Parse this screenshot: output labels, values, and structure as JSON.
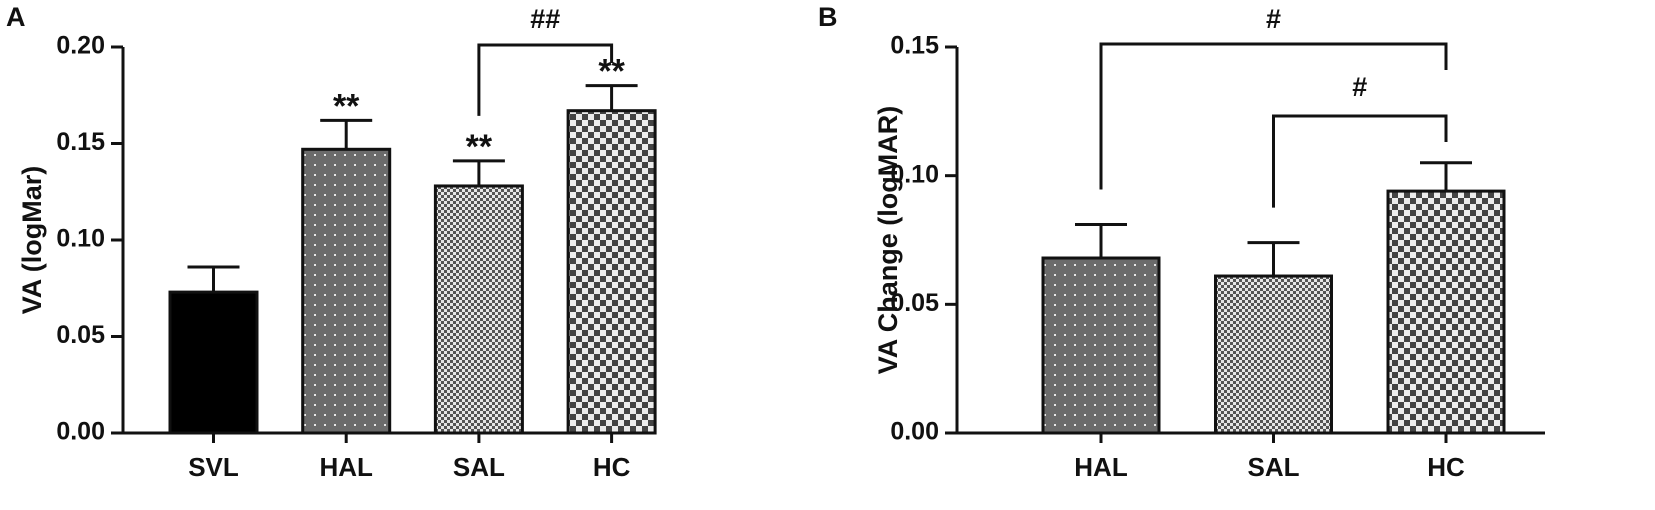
{
  "chart_data": [
    {
      "panel": "A",
      "type": "bar",
      "ylabel": "VA (logMar)",
      "ylim": [
        0,
        0.2
      ],
      "ytick_labels": [
        "0.00",
        "0.05",
        "0.10",
        "0.15",
        "0.20"
      ],
      "yticks": [
        0,
        0.05,
        0.1,
        0.15,
        0.2
      ],
      "categories": [
        "SVL",
        "HAL",
        "SAL",
        "HC"
      ],
      "values": [
        0.073,
        0.147,
        0.128,
        0.167
      ],
      "errors": [
        0.013,
        0.015,
        0.013,
        0.013
      ],
      "patterns": [
        "solid",
        "dots",
        "fine-check",
        "check"
      ],
      "bar_annotations": [
        "",
        "**",
        "**",
        "**"
      ],
      "brackets": [
        {
          "from": "SAL",
          "to": "HC",
          "label": "##"
        }
      ]
    },
    {
      "panel": "B",
      "type": "bar",
      "ylabel": "VA Change  (logMAR)",
      "ylim": [
        0,
        0.15
      ],
      "ytick_labels": [
        "0.00",
        "0.05",
        "0.10",
        "0.15"
      ],
      "yticks": [
        0,
        0.05,
        0.1,
        0.15
      ],
      "categories": [
        "HAL",
        "SAL",
        "HC"
      ],
      "values": [
        0.068,
        0.061,
        0.094
      ],
      "errors": [
        0.013,
        0.013,
        0.011
      ],
      "patterns": [
        "dots",
        "fine-check",
        "check"
      ],
      "bar_annotations": [
        "",
        "",
        ""
      ],
      "brackets": [
        {
          "from": "HAL",
          "to": "HC",
          "label": "#"
        },
        {
          "from": "SAL",
          "to": "HC",
          "label": "#"
        }
      ]
    }
  ]
}
